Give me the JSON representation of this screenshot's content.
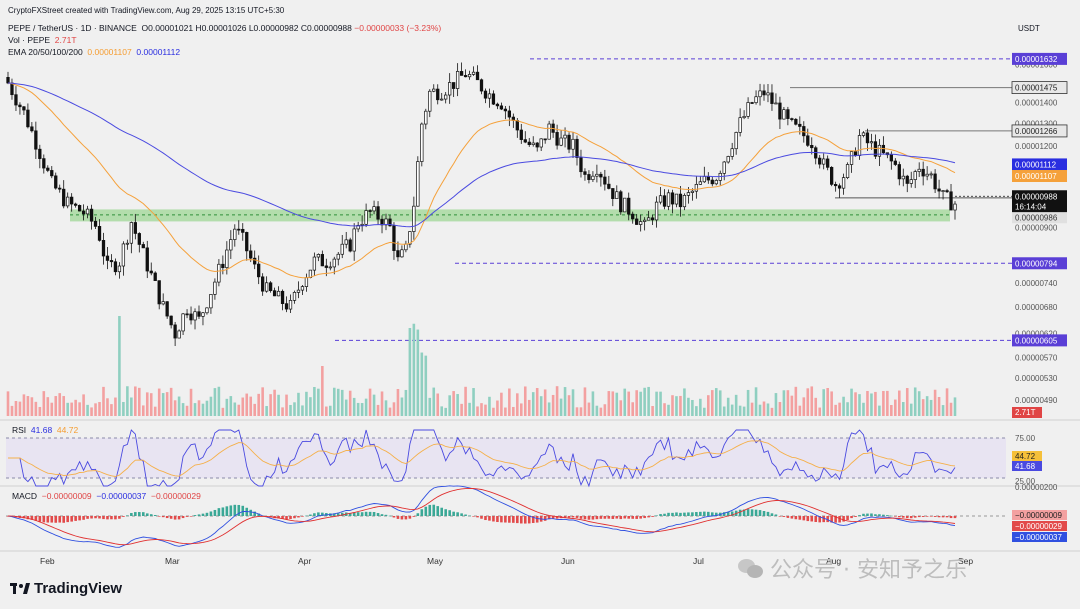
{
  "credit": "CryptoFXStreet created with TradingView.com, Aug 29, 2025 13:15 UTC+5:30",
  "header": {
    "symbol_line": "PEPE / TetherUS · 1D · BINANCE",
    "ohlc": "O0.00001021  H0.00001026  L0.00000982  C0.00000988",
    "change": "−0.00000033 (−3.23%)",
    "vol_label": "Vol · PEPE",
    "vol_value": "2.71T",
    "ema_label": "EMA 20/50/100/200",
    "ema_value_1": "0.00001107",
    "ema_value_2": "0.00001112"
  },
  "currency": "USDT",
  "colors": {
    "up": "#3aa896",
    "down": "#e24a4a",
    "ema_orange": "#f5a13b",
    "ema_blue": "#4a4ae0",
    "support_zone": "#a8d9a0",
    "grid": "#e4e4e4",
    "purple_label": "#5a3fd6"
  },
  "price_axis_ticks": [
    "0.00001600",
    "0.00001400",
    "0.00001300",
    "0.00001200",
    "0.00000900",
    "0.00000740",
    "0.00000680",
    "0.00000620",
    "0.00000570",
    "0.00000530",
    "0.00000490"
  ],
  "price_labels": {
    "high_1632": "0.00001632",
    "l_1475": "0.00001475",
    "l_1266": "0.00001266",
    "ema_blue": "0.00001112",
    "ema_orange": "0.00001107",
    "last": "0.00000988",
    "countdown": "16:14:04",
    "l_986": "0.00000986",
    "l_794": "0.00000794",
    "l_605": "0.00000605",
    "vol_badge": "2.71T"
  },
  "rsi": {
    "label": "RSI",
    "value": "41.68",
    "signal": "44.72",
    "ticks": [
      "75.00",
      "25.00"
    ],
    "badge_signal": "44.72",
    "badge_value": "41.68"
  },
  "macd": {
    "label": "MACD",
    "v1": "−0.00000009",
    "v2": "−0.00000037",
    "v3": "−0.00000029",
    "tick_top": "0.00000200",
    "badge_1": "−0.00000009",
    "badge_2": "−0.00000029",
    "badge_3": "−0.00000037"
  },
  "months": [
    "Feb",
    "Mar",
    "Apr",
    "May",
    "Jun",
    "Jul",
    "Aug",
    "Sep"
  ],
  "brand": "TradingView",
  "watermark": "公众号 · 安知予之乐",
  "chart_data": {
    "type": "candlestick",
    "title": "PEPE / TetherUS · 1D · BINANCE",
    "x": [
      "2025-01-20",
      "2025-02-01",
      "2025-02-15",
      "2025-03-01",
      "2025-03-10",
      "2025-03-20",
      "2025-04-01",
      "2025-04-09",
      "2025-04-20",
      "2025-05-01",
      "2025-05-09",
      "2025-05-13",
      "2025-05-23",
      "2025-06-01",
      "2025-06-10",
      "2025-06-22",
      "2025-07-01",
      "2025-07-10",
      "2025-07-21",
      "2025-08-01",
      "2025-08-10",
      "2025-08-20",
      "2025-08-29"
    ],
    "close": [
      1.4e-05,
      1.15e-05,
      9.5e-06,
      8.2e-06,
      7e-06,
      7.8e-06,
      8e-06,
      6.5e-06,
      7.6e-06,
      8.8e-06,
      1.29e-05,
      1.5e-05,
      1.45e-05,
      1.22e-05,
      1.21e-05,
      9.7e-06,
      1.02e-05,
      1.21e-05,
      1.4e-05,
      1.05e-05,
      1.23e-05,
      1.12e-05,
      9.88e-06
    ],
    "levels": [
      1.632e-05,
      1.475e-05,
      1.266e-05,
      9.86e-06,
      7.94e-06,
      6.05e-06
    ],
    "support_zone": [
      9.6e-06,
      9.3e-06
    ],
    "ema_50": "0.00001107",
    "ema_200": "0.00001112"
  }
}
